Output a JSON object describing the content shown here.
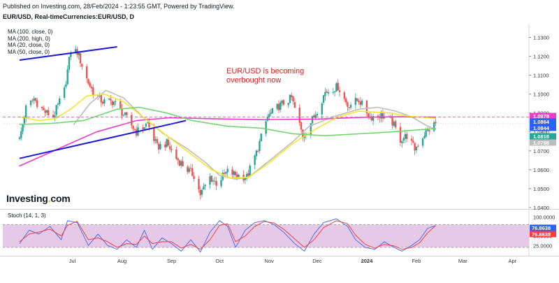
{
  "header": {
    "published": "Published on Investing.com, 28/Feb/2024 - 1:23:55 GMT, Powered by TradingView.",
    "instrument": "EUR/USD, Real-timeCurrencies:EUR/USD, D"
  },
  "ma_legend": [
    "MA (100, close, 0)",
    "MA (200, high, 0)",
    "MA (20, close, 0)",
    "MA (50, close, 0)"
  ],
  "annotation": "EUR/USD is becoming overbought now",
  "logo": {
    "text": "Investing",
    "dot": ".",
    "suffix": "com"
  },
  "oscillator_title": "Stoch (14, 1, 3)",
  "colors": {
    "up_candle": "#26a69a",
    "down_candle": "#ef5350",
    "ma100": "#bdbdbd",
    "ma200": "#ee3cc6",
    "ma20": "#f5e52a",
    "ma50": "#72d66e",
    "trendline": "#1b1bd6",
    "stoch_k": "#4d6ff2",
    "stoch_d": "#ef4141",
    "stoch_band": "#e2bfe2",
    "annotation": "#e01b1b"
  },
  "chart_data": [
    {
      "type": "candlestick",
      "title": "EUR/USD, Real-timeCurrencies:EUR/USD, D",
      "x_ticks": [
        "Jul",
        "Aug",
        "Sep",
        "Oct",
        "Nov",
        "Dec",
        "2024",
        "Feb",
        "Mar",
        "Apr"
      ],
      "y_ticks": [
        1.04,
        1.05,
        1.06,
        1.07,
        1.08,
        1.09,
        1.1,
        1.11,
        1.12,
        1.13
      ],
      "y_tick_labels": [
        "1.0400",
        "1.0500",
        "1.0600",
        "1.0700",
        "1.0800",
        "1.0900",
        "1.1000",
        "1.1100",
        "1.1200",
        "1.1300"
      ],
      "ylim": [
        1.04,
        1.135
      ],
      "price_badges": [
        {
          "label": "1.0878",
          "value": 1.0878,
          "color": "#ee3cc6"
        },
        {
          "label": "1.0864",
          "value": 1.0864,
          "color": "#2962ff"
        },
        {
          "label": "1.0844",
          "value": 1.0844,
          "color": "#2962ff"
        },
        {
          "label": "1.0818",
          "value": 1.0818,
          "color": "#26a69a"
        },
        {
          "label": "1.0798",
          "value": 1.0798,
          "color": "#bdbdbd"
        }
      ],
      "anchors": [
        [
          "Jun 12",
          1.076
        ],
        [
          "Jun 16",
          1.0925
        ],
        [
          "Jun 21",
          1.0975
        ],
        [
          "Jun 27",
          1.091
        ],
        [
          "Jul 03",
          1.088
        ],
        [
          "Jul 10",
          1.102
        ],
        [
          "Jul 14",
          1.123
        ],
        [
          "Jul 18",
          1.1225
        ],
        [
          "Jul 24",
          1.108
        ],
        [
          "Jul 28",
          1.101
        ],
        [
          "Aug 03",
          1.096
        ],
        [
          "Aug 10",
          1.096
        ],
        [
          "Aug 18",
          1.087
        ],
        [
          "Aug 24",
          1.08
        ],
        [
          "Aug 31",
          1.0845
        ],
        [
          "Sep 06",
          1.072
        ],
        [
          "Sep 12",
          1.074
        ],
        [
          "Sep 18",
          1.066
        ],
        [
          "Sep 25",
          1.06
        ],
        [
          "Sep 29",
          1.057
        ],
        [
          "Oct 03",
          1.047
        ],
        [
          "Oct 09",
          1.056
        ],
        [
          "Oct 13",
          1.053
        ],
        [
          "Oct 20",
          1.059
        ],
        [
          "Oct 26",
          1.057
        ],
        [
          "Nov 01",
          1.056
        ],
        [
          "Nov 07",
          1.069
        ],
        [
          "Nov 14",
          1.088
        ],
        [
          "Nov 20",
          1.093
        ],
        [
          "Nov 29",
          1.098
        ],
        [
          "Dec 06",
          1.078
        ],
        [
          "Dec 13",
          1.088
        ],
        [
          "Dec 20",
          1.101
        ],
        [
          "Dec 28",
          1.104
        ],
        [
          "Jan 03",
          1.094
        ],
        [
          "Jan 10",
          1.097
        ],
        [
          "Jan 17",
          1.088
        ],
        [
          "Jan 24",
          1.089
        ],
        [
          "Jan 31",
          1.085
        ],
        [
          "Feb 05",
          1.076
        ],
        [
          "Feb 09",
          1.078
        ],
        [
          "Feb 14",
          1.071
        ],
        [
          "Feb 20",
          1.079
        ],
        [
          "Feb 27",
          1.0845
        ]
      ],
      "moving_averages": [
        {
          "name": "MA (100, close, 0)",
          "color": "#bdbdbd",
          "points": [
            [
              "Jul 16",
              1.084
            ],
            [
              "Jul 26",
              1.095
            ],
            [
              "Aug 05",
              1.102
            ],
            [
              "Aug 16",
              1.098
            ],
            [
              "Aug 28",
              1.088
            ],
            [
              "Sep 10",
              1.079
            ],
            [
              "Sep 25",
              1.071
            ],
            [
              "Oct 06",
              1.064
            ],
            [
              "Oct 15",
              1.057
            ],
            [
              "Oct 25",
              1.055
            ],
            [
              "Nov 02",
              1.056
            ],
            [
              "Nov 14",
              1.064
            ],
            [
              "Nov 30",
              1.075
            ],
            [
              "Dec 10",
              1.083
            ],
            [
              "Dec 25",
              1.088
            ],
            [
              "Jan 10",
              1.092
            ],
            [
              "Jan 22",
              1.093
            ],
            [
              "Feb 02",
              1.091
            ],
            [
              "Feb 12",
              1.088
            ],
            [
              "Feb 20",
              1.084
            ],
            [
              "Feb 27",
              1.0812
            ]
          ]
        },
        {
          "name": "MA (200, high, 0)",
          "color": "#ee3cc6",
          "points": [
            [
              "Jun 12",
              1.062
            ],
            [
              "Jul 06",
              1.071
            ],
            [
              "Jul 30",
              1.08
            ],
            [
              "Aug 24",
              1.086
            ],
            [
              "Sep 14",
              1.0875
            ],
            [
              "Oct 10",
              1.087
            ],
            [
              "Nov 10",
              1.0865
            ],
            [
              "Dec 15",
              1.0868
            ],
            [
              "Jan 15",
              1.0878
            ],
            [
              "Feb 05",
              1.088
            ],
            [
              "Feb 27",
              1.0878
            ]
          ]
        },
        {
          "name": "MA (20, close, 0)",
          "color": "#f5e52a",
          "points": [
            [
              "Jun 12",
              1.088
            ],
            [
              "Jun 24",
              1.086
            ],
            [
              "Jul 04",
              1.087
            ],
            [
              "Jul 14",
              1.092
            ],
            [
              "Jul 24",
              1.099
            ],
            [
              "Aug 04",
              1.1
            ],
            [
              "Aug 16",
              1.096
            ],
            [
              "Aug 31",
              1.086
            ],
            [
              "Sep 12",
              1.078
            ],
            [
              "Sep 26",
              1.069
            ],
            [
              "Oct 10",
              1.06
            ],
            [
              "Oct 22",
              1.0555
            ],
            [
              "Nov 02",
              1.056
            ],
            [
              "Nov 14",
              1.063
            ],
            [
              "Nov 30",
              1.074
            ],
            [
              "Dec 13",
              1.081
            ],
            [
              "Dec 28",
              1.088
            ],
            [
              "Jan 10",
              1.091
            ],
            [
              "Jan 20",
              1.0905
            ],
            [
              "Jan 30",
              1.09
            ],
            [
              "Feb 08",
              1.0885
            ],
            [
              "Feb 18",
              1.0878
            ],
            [
              "Feb 27",
              1.0872
            ]
          ]
        },
        {
          "name": "MA (50, close, 0)",
          "color": "#72d66e",
          "points": [
            [
              "Jun 12",
              1.084
            ],
            [
              "Jul 02",
              1.0845
            ],
            [
              "Jul 22",
              1.086
            ],
            [
              "Aug 12",
              1.092
            ],
            [
              "Aug 26",
              1.093
            ],
            [
              "Sep 12",
              1.09
            ],
            [
              "Sep 28",
              1.086
            ],
            [
              "Oct 20",
              1.083
            ],
            [
              "Nov 10",
              1.082
            ],
            [
              "Nov 30",
              1.079
            ],
            [
              "Dec 20",
              1.078
            ],
            [
              "Jan 10",
              1.079
            ],
            [
              "Jan 30",
              1.08
            ],
            [
              "Feb 15",
              1.081
            ],
            [
              "Feb 27",
              1.0818
            ]
          ]
        }
      ],
      "trendlines": [
        {
          "from": [
            "Jun 12",
            1.118
          ],
          "to": [
            "Aug 12",
            1.125
          ]
        },
        {
          "from": [
            "Jun 12",
            1.066
          ],
          "to": [
            "Sep 24",
            1.086
          ]
        }
      ],
      "ma_price_line": 1.0878,
      "last_price_line": 1.0844
    },
    {
      "type": "line",
      "title": "Stoch (14, 1, 3)",
      "y_ticks": [
        25,
        50,
        75,
        100
      ],
      "y_tick_labels": [
        "25.0000",
        "50.0000",
        "75.0000",
        "100.0000"
      ],
      "ylim": [
        0,
        108
      ],
      "bands": [
        20,
        80
      ],
      "x_ticks": [
        "Jul",
        "Aug",
        "Sep",
        "Oct",
        "Nov",
        "Dec",
        "2024",
        "Feb",
        "Mar",
        "Apr"
      ],
      "badges": [
        {
          "label": "76.8638",
          "value": 76.8638,
          "color": "#2962ff"
        },
        {
          "label": "76.8638",
          "value": 76.8638,
          "color": "#ef4141"
        }
      ],
      "series": [
        {
          "name": "%K",
          "color": "#4d6ff2",
          "points": [
            [
              "Jun 12",
              30
            ],
            [
              "Jun 18",
              65
            ],
            [
              "Jun 24",
              55
            ],
            [
              "Jul 01",
              75
            ],
            [
              "Jul 08",
              40
            ],
            [
              "Jul 12",
              90
            ],
            [
              "Jul 18",
              85
            ],
            [
              "Jul 25",
              25
            ],
            [
              "Jul 31",
              55
            ],
            [
              "Aug 06",
              25
            ],
            [
              "Aug 12",
              15
            ],
            [
              "Aug 18",
              40
            ],
            [
              "Aug 24",
              20
            ],
            [
              "Aug 29",
              65
            ],
            [
              "Sep 03",
              15
            ],
            [
              "Sep 09",
              45
            ],
            [
              "Sep 15",
              30
            ],
            [
              "Sep 21",
              10
            ],
            [
              "Sep 27",
              40
            ],
            [
              "Oct 03",
              8
            ],
            [
              "Oct 09",
              60
            ],
            [
              "Oct 15",
              90
            ],
            [
              "Oct 20",
              75
            ],
            [
              "Oct 25",
              20
            ],
            [
              "Oct 31",
              65
            ],
            [
              "Nov 06",
              85
            ],
            [
              "Nov 12",
              90
            ],
            [
              "Nov 18",
              80
            ],
            [
              "Nov 24",
              60
            ],
            [
              "Dec 01",
              30
            ],
            [
              "Dec 07",
              10
            ],
            [
              "Dec 13",
              55
            ],
            [
              "Dec 19",
              85
            ],
            [
              "Dec 27",
              95
            ],
            [
              "Jan 03",
              75
            ],
            [
              "Jan 08",
              40
            ],
            [
              "Jan 14",
              20
            ],
            [
              "Jan 20",
              15
            ],
            [
              "Jan 26",
              35
            ],
            [
              "Feb 01",
              20
            ],
            [
              "Feb 06",
              10
            ],
            [
              "Feb 12",
              25
            ],
            [
              "Feb 17",
              40
            ],
            [
              "Feb 22",
              70
            ],
            [
              "Feb 27",
              77
            ]
          ]
        },
        {
          "name": "%D",
          "color": "#ef4141",
          "points": [
            [
              "Jun 12",
              35
            ],
            [
              "Jun 18",
              55
            ],
            [
              "Jun 24",
              60
            ],
            [
              "Jul 01",
              68
            ],
            [
              "Jul 08",
              50
            ],
            [
              "Jul 12",
              78
            ],
            [
              "Jul 18",
              88
            ],
            [
              "Jul 25",
              40
            ],
            [
              "Jul 31",
              45
            ],
            [
              "Aug 06",
              35
            ],
            [
              "Aug 12",
              20
            ],
            [
              "Aug 18",
              30
            ],
            [
              "Aug 24",
              28
            ],
            [
              "Aug 29",
              50
            ],
            [
              "Sep 03",
              30
            ],
            [
              "Sep 09",
              35
            ],
            [
              "Sep 15",
              35
            ],
            [
              "Sep 21",
              18
            ],
            [
              "Sep 27",
              28
            ],
            [
              "Oct 03",
              15
            ],
            [
              "Oct 09",
              40
            ],
            [
              "Oct 15",
              78
            ],
            [
              "Oct 20",
              82
            ],
            [
              "Oct 25",
              35
            ],
            [
              "Oct 31",
              50
            ],
            [
              "Nov 06",
              75
            ],
            [
              "Nov 12",
              88
            ],
            [
              "Nov 18",
              84
            ],
            [
              "Nov 24",
              68
            ],
            [
              "Dec 01",
              42
            ],
            [
              "Dec 07",
              20
            ],
            [
              "Dec 13",
              40
            ],
            [
              "Dec 19",
              72
            ],
            [
              "Dec 27",
              90
            ],
            [
              "Jan 03",
              82
            ],
            [
              "Jan 08",
              52
            ],
            [
              "Jan 14",
              28
            ],
            [
              "Jan 20",
              18
            ],
            [
              "Jan 26",
              28
            ],
            [
              "Feb 01",
              24
            ],
            [
              "Feb 06",
              15
            ],
            [
              "Feb 12",
              20
            ],
            [
              "Feb 17",
              32
            ],
            [
              "Feb 22",
              58
            ],
            [
              "Feb 27",
              77
            ]
          ]
        }
      ]
    }
  ]
}
